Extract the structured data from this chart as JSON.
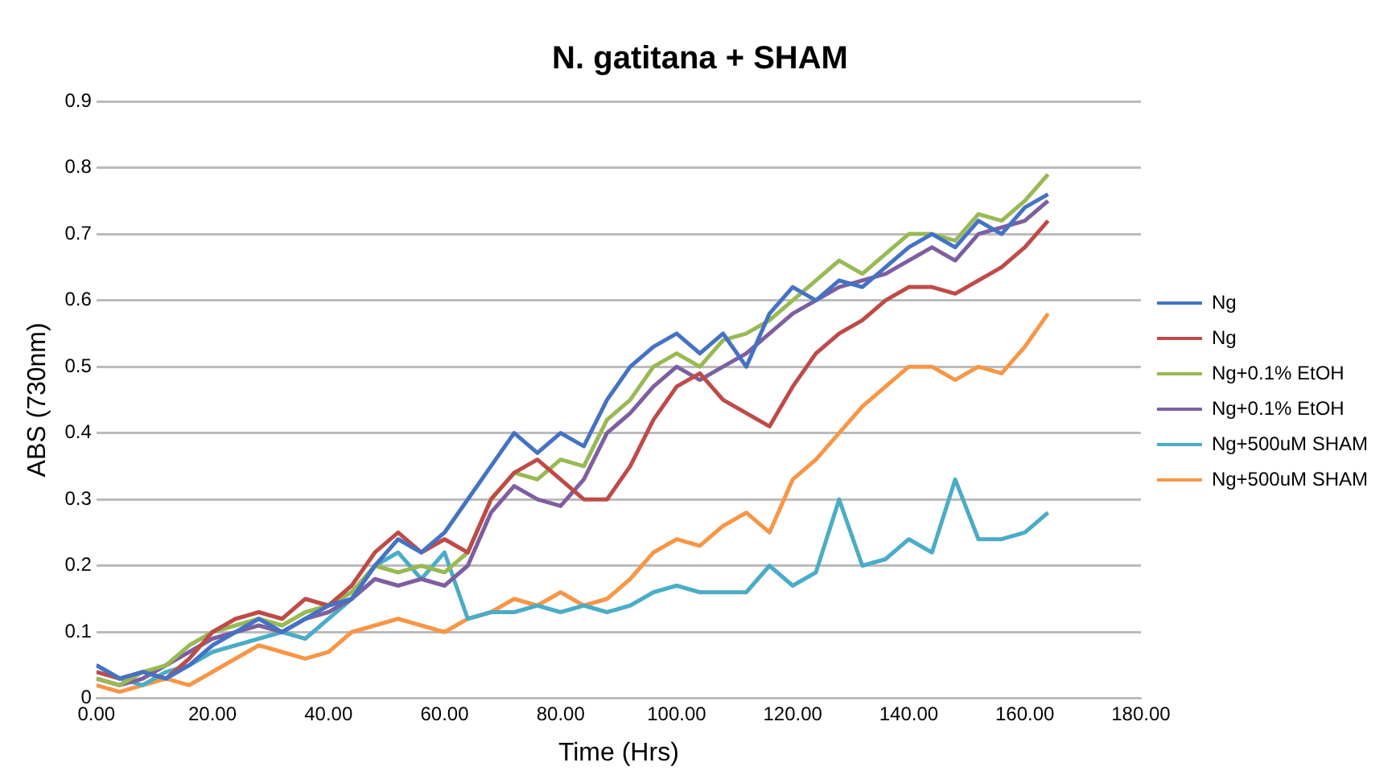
{
  "chart_data": {
    "type": "line",
    "title": "N. gatitana + SHAM",
    "xlabel": "Time (Hrs)",
    "ylabel": "ABS (730nm)",
    "x": [
      0,
      4,
      8,
      12,
      16,
      20,
      24,
      28,
      32,
      36,
      40,
      44,
      48,
      52,
      56,
      60,
      64,
      68,
      72,
      76,
      80,
      84,
      88,
      92,
      96,
      100,
      104,
      108,
      112,
      116,
      120,
      124,
      128,
      132,
      136,
      140,
      144,
      148,
      152,
      156,
      160,
      164
    ],
    "series": [
      {
        "name": "Ng",
        "color": "#4472c4",
        "values": [
          0.05,
          0.03,
          0.04,
          0.03,
          0.05,
          0.08,
          0.1,
          0.12,
          0.1,
          0.12,
          0.14,
          0.15,
          0.2,
          0.24,
          0.22,
          0.25,
          0.3,
          0.35,
          0.4,
          0.37,
          0.4,
          0.38,
          0.45,
          0.5,
          0.53,
          0.55,
          0.52,
          0.55,
          0.5,
          0.58,
          0.62,
          0.6,
          0.63,
          0.62,
          0.65,
          0.68,
          0.7,
          0.68,
          0.72,
          0.7,
          0.74,
          0.76
        ]
      },
      {
        "name": "Ng",
        "color": "#be4b48",
        "values": [
          0.04,
          0.03,
          0.04,
          0.03,
          0.06,
          0.1,
          0.12,
          0.13,
          0.12,
          0.15,
          0.14,
          0.17,
          0.22,
          0.25,
          0.22,
          0.24,
          0.22,
          0.3,
          0.34,
          0.36,
          0.33,
          0.3,
          0.3,
          0.35,
          0.42,
          0.47,
          0.49,
          0.45,
          0.43,
          0.41,
          0.47,
          0.52,
          0.55,
          0.57,
          0.6,
          0.62,
          0.62,
          0.61,
          0.63,
          0.65,
          0.68,
          0.72
        ]
      },
      {
        "name": "Ng+0.1% EtOH",
        "color": "#98b954",
        "values": [
          0.03,
          0.02,
          0.04,
          0.05,
          0.08,
          0.1,
          0.11,
          0.12,
          0.11,
          0.13,
          0.14,
          0.16,
          0.2,
          0.19,
          0.2,
          0.19,
          0.22,
          0.3,
          0.34,
          0.33,
          0.36,
          0.35,
          0.42,
          0.45,
          0.5,
          0.52,
          0.5,
          0.54,
          0.55,
          0.57,
          0.6,
          0.63,
          0.66,
          0.64,
          0.67,
          0.7,
          0.7,
          0.69,
          0.73,
          0.72,
          0.75,
          0.79
        ]
      },
      {
        "name": "Ng+0.1% EtOH",
        "color": "#7d5fa0",
        "values": [
          0.03,
          0.02,
          0.03,
          0.05,
          0.07,
          0.09,
          0.1,
          0.11,
          0.1,
          0.12,
          0.13,
          0.15,
          0.18,
          0.17,
          0.18,
          0.17,
          0.2,
          0.28,
          0.32,
          0.3,
          0.29,
          0.33,
          0.4,
          0.43,
          0.47,
          0.5,
          0.48,
          0.5,
          0.52,
          0.55,
          0.58,
          0.6,
          0.62,
          0.63,
          0.64,
          0.66,
          0.68,
          0.66,
          0.7,
          0.71,
          0.72,
          0.75
        ]
      },
      {
        "name": "Ng+500uM SHAM",
        "color": "#4bacc6",
        "values": [
          0.05,
          0.03,
          0.02,
          0.04,
          0.05,
          0.07,
          0.08,
          0.09,
          0.1,
          0.09,
          0.12,
          0.15,
          0.2,
          0.22,
          0.18,
          0.22,
          0.12,
          0.13,
          0.13,
          0.14,
          0.13,
          0.14,
          0.13,
          0.14,
          0.16,
          0.17,
          0.16,
          0.16,
          0.16,
          0.2,
          0.17,
          0.19,
          0.3,
          0.2,
          0.21,
          0.24,
          0.22,
          0.33,
          0.24,
          0.24,
          0.25,
          0.28
        ]
      },
      {
        "name": "Ng+500uM SHAM",
        "color": "#f79646",
        "values": [
          0.02,
          0.01,
          0.02,
          0.03,
          0.02,
          0.04,
          0.06,
          0.08,
          0.07,
          0.06,
          0.07,
          0.1,
          0.11,
          0.12,
          0.11,
          0.1,
          0.12,
          0.13,
          0.15,
          0.14,
          0.16,
          0.14,
          0.15,
          0.18,
          0.22,
          0.24,
          0.23,
          0.26,
          0.28,
          0.25,
          0.33,
          0.36,
          0.4,
          0.44,
          0.47,
          0.5,
          0.5,
          0.48,
          0.5,
          0.49,
          0.53,
          0.58
        ]
      }
    ],
    "xlim": [
      0,
      180
    ],
    "xticks": [
      {
        "value": 0,
        "label": "0.00"
      },
      {
        "value": 20,
        "label": "20.00"
      },
      {
        "value": 40,
        "label": "40.00"
      },
      {
        "value": 60,
        "label": "60.00"
      },
      {
        "value": 80,
        "label": "80.00"
      },
      {
        "value": 100,
        "label": "100.00"
      },
      {
        "value": 120,
        "label": "120.00"
      },
      {
        "value": 140,
        "label": "140.00"
      },
      {
        "value": 160,
        "label": "160.00"
      },
      {
        "value": 180,
        "label": "180.00"
      }
    ],
    "ylim": [
      0,
      0.9
    ],
    "yticks": [
      0,
      0.1,
      0.2,
      0.3,
      0.4,
      0.5,
      0.6,
      0.7,
      0.8,
      0.9
    ],
    "grid": "y",
    "legend": "right",
    "marker": "none",
    "line_style": "solid"
  }
}
